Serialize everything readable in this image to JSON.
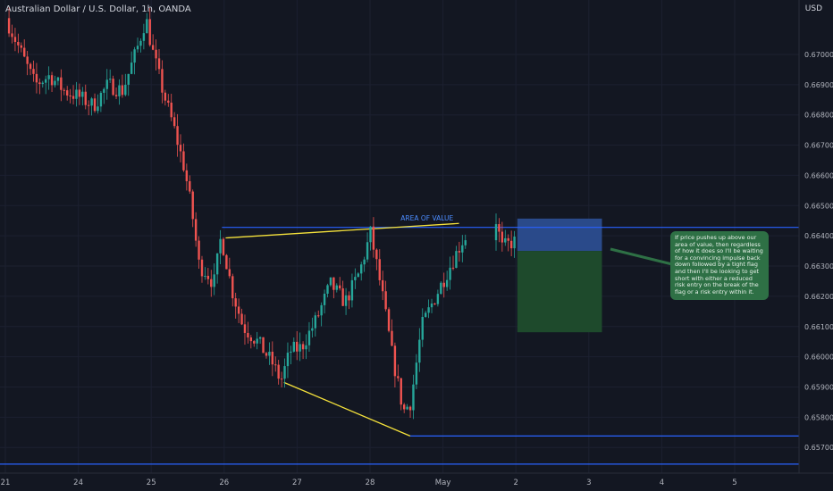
{
  "header": {
    "title": "Australian Dollar / U.S. Dollar, 1h, OANDA",
    "currency": "USD"
  },
  "annotations": {
    "area_label": "AREA OF VALUE",
    "note": "If price pushes up above our area of value, then regardless of how it does so I'll be waiting for a convincing impulse back down followed by a tight flag and then I'll be looking to get short with either a reduced risk entry on the break of the flag or a risk entry within it."
  },
  "colors": {
    "background": "#131722",
    "up": "#26a69a",
    "down": "#ef5350",
    "level_line": "#2962ff",
    "trend_line": "#f5e23b",
    "risk_zone": "#2a4a8a",
    "reward_zone": "#1e4a2c",
    "note_bg": "#2e7045",
    "area_label": "#4c8cff"
  },
  "chart_data": {
    "type": "candlestick",
    "symbol": "AUDUSD",
    "timeframe": "1h",
    "ylim": [
      0.65615,
      0.6718
    ],
    "y_ticks": [
      0.657,
      0.658,
      0.659,
      0.66,
      0.661,
      0.662,
      0.663,
      0.664,
      0.665,
      0.666,
      0.667,
      0.668,
      0.669,
      0.67
    ],
    "x_ticks": [
      {
        "label": "21",
        "pos": 0.0
      },
      {
        "label": "24",
        "pos": 1.0
      },
      {
        "label": "25",
        "pos": 2.0
      },
      {
        "label": "26",
        "pos": 3.0
      },
      {
        "label": "27",
        "pos": 4.0
      },
      {
        "label": "28",
        "pos": 5.0
      },
      {
        "label": "May",
        "pos": 6.0
      },
      {
        "label": "2",
        "pos": 7.0
      },
      {
        "label": "3",
        "pos": 8.0
      },
      {
        "label": "4",
        "pos": 9.0
      },
      {
        "label": "5",
        "pos": 10.0
      }
    ],
    "price_path": [
      [
        0.05,
        0.6712
      ],
      [
        0.25,
        0.6701
      ],
      [
        0.45,
        0.669
      ],
      [
        0.65,
        0.6693
      ],
      [
        0.85,
        0.6688
      ],
      [
        1.05,
        0.6686
      ],
      [
        1.25,
        0.6683
      ],
      [
        1.45,
        0.669
      ],
      [
        1.65,
        0.6688
      ],
      [
        1.85,
        0.6702
      ],
      [
        1.97,
        0.6712
      ],
      [
        2.05,
        0.6702
      ],
      [
        2.2,
        0.6688
      ],
      [
        2.35,
        0.6676
      ],
      [
        2.5,
        0.6662
      ],
      [
        2.6,
        0.6648
      ],
      [
        2.7,
        0.663
      ],
      [
        2.8,
        0.6628
      ],
      [
        2.9,
        0.6624
      ],
      [
        3.0,
        0.664
      ],
      [
        3.15,
        0.6622
      ],
      [
        3.3,
        0.661
      ],
      [
        3.5,
        0.6605
      ],
      [
        3.7,
        0.6598
      ],
      [
        3.82,
        0.6592
      ],
      [
        3.95,
        0.6602
      ],
      [
        4.1,
        0.6603
      ],
      [
        4.3,
        0.6612
      ],
      [
        4.5,
        0.6624
      ],
      [
        4.7,
        0.6618
      ],
      [
        4.9,
        0.6628
      ],
      [
        5.05,
        0.6641
      ],
      [
        5.2,
        0.6622
      ],
      [
        5.35,
        0.66
      ],
      [
        5.5,
        0.6582
      ],
      [
        5.6,
        0.6585
      ],
      [
        5.75,
        0.661
      ],
      [
        5.9,
        0.6618
      ],
      [
        6.1,
        0.6628
      ],
      [
        6.3,
        0.6638
      ],
      [
        6.72,
        0.6651
      ],
      [
        6.85,
        0.6636
      ],
      [
        7.0,
        0.6638
      ]
    ],
    "levels": [
      0.66428,
      0.65738,
      0.65645
    ],
    "trend_lines": [
      {
        "x1": 3.02,
        "y1": 0.66393,
        "x2": 6.22,
        "y2": 0.66441
      },
      {
        "x1": 3.82,
        "y1": 0.65915,
        "x2": 5.55,
        "y2": 0.65738
      }
    ],
    "area_label_pos": {
      "x": 5.42,
      "y": 0.6645
    },
    "position": {
      "x1": 7.02,
      "x2": 8.18,
      "top": 0.66457,
      "entry": 0.6635,
      "bottom": 0.66081
    }
  }
}
